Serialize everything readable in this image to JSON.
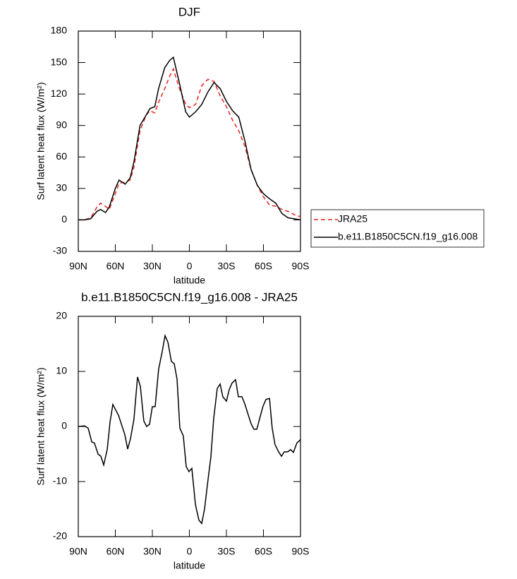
{
  "chart_data": [
    {
      "type": "line",
      "title": "DJF",
      "xlabel": "latitude",
      "ylabel": "Surf latent heat flux (W/m²)",
      "x": [
        90,
        85,
        80,
        75,
        72,
        68,
        65,
        60,
        57,
        52,
        48,
        45,
        40,
        35,
        32,
        28,
        25,
        20,
        16,
        13,
        8,
        3,
        0,
        -5,
        -10,
        -15,
        -20,
        -25,
        -30,
        -35,
        -40,
        -45,
        -50,
        -55,
        -60,
        -65,
        -70,
        -75,
        -80,
        -85,
        -90
      ],
      "series": [
        {
          "name": "JRA25",
          "color": "#e8231f",
          "linestyle": "dashed",
          "values": [
            0,
            0,
            2,
            12,
            16,
            13,
            10,
            25,
            35,
            36,
            38,
            50,
            85,
            100,
            104,
            102,
            112,
            125,
            137,
            144,
            125,
            110,
            107,
            110,
            128,
            134,
            132,
            118,
            108,
            95,
            85,
            70,
            48,
            33,
            22,
            14,
            13,
            10,
            8,
            5,
            3
          ]
        },
        {
          "name": "b.e11.B1850C5CN.f19_g16.008",
          "color": "#000000",
          "linestyle": "solid",
          "values": [
            0,
            0,
            1,
            8,
            10,
            7,
            12,
            30,
            38,
            34,
            40,
            55,
            90,
            100,
            106,
            108,
            125,
            145,
            152,
            155,
            130,
            103,
            98,
            103,
            110,
            122,
            131,
            125,
            113,
            104,
            98,
            75,
            48,
            33,
            25,
            20,
            16,
            6,
            2,
            1,
            0
          ]
        }
      ],
      "xlim": [
        90,
        -90
      ],
      "xticks": [
        {
          "value": 90,
          "label": "90N"
        },
        {
          "value": 60,
          "label": "60N"
        },
        {
          "value": 30,
          "label": "30N"
        },
        0,
        {
          "value": -30,
          "label": "30S"
        },
        {
          "value": -60,
          "label": "60S"
        },
        {
          "value": -90,
          "label": "90S"
        }
      ],
      "ylim": [
        -30,
        180
      ],
      "yticks": [
        -30,
        0,
        30,
        60,
        90,
        120,
        150,
        180
      ],
      "legend": "outside right"
    },
    {
      "type": "line",
      "title": "b.e11.B1850C5CN.f19_g16.008 - JRA25",
      "xlabel": "latitude",
      "ylabel": "Surf latent heat flux (W/m²)",
      "x": [
        90,
        84.9,
        82,
        79.1,
        76.9,
        74,
        71.7,
        69.4,
        66.6,
        64.3,
        62,
        57.4,
        52.3,
        50,
        47.7,
        44.9,
        42,
        39.7,
        36.9,
        34.6,
        32.3,
        30,
        27.7,
        24.9,
        22,
        19.7,
        17.4,
        14.6,
        12.3,
        10,
        7.7,
        4.9,
        2.6,
        0.3,
        -2,
        -4.9,
        -7.7,
        -10,
        -12.3,
        -15.1,
        -17.4,
        -19.7,
        -22.6,
        -24.9,
        -27.1,
        -30,
        -32.3,
        -34.6,
        -37.4,
        -39.7,
        -42.6,
        -44.9,
        -47.7,
        -50,
        -52.3,
        -54.6,
        -57.4,
        -59.7,
        -62,
        -64.9,
        -67.1,
        -69.4,
        -72.3,
        -74.6,
        -76.9,
        -79.7,
        -82,
        -84.3,
        -87.1,
        -90
      ],
      "values": [
        0,
        0.1,
        -0.3,
        -2.8,
        -3,
        -5,
        -5.4,
        -7,
        -4.2,
        0.8,
        4,
        2,
        -1.5,
        -4.1,
        -2.2,
        1.3,
        9,
        7.3,
        1,
        0,
        0.4,
        3.6,
        3.6,
        10.4,
        13.6,
        16.5,
        15.3,
        11.8,
        11.4,
        8.6,
        -0.3,
        -1.7,
        -7.3,
        -8.2,
        -7.6,
        -14.2,
        -17,
        -17.6,
        -15,
        -9.7,
        -5.5,
        1.5,
        6.9,
        7.7,
        5.4,
        4.6,
        6.7,
        7.9,
        8.5,
        5.4,
        5.4,
        4.1,
        2.1,
        0.5,
        -0.5,
        -0.5,
        1.8,
        3.7,
        4.9,
        5.1,
        -0.3,
        -3.3,
        -4.6,
        -5.4,
        -4.6,
        -4.6,
        -4.2,
        -4.7,
        -3,
        -2.4
      ],
      "color": "#000000",
      "linestyle": "solid",
      "xlim": [
        90,
        -90
      ],
      "xticks": [
        {
          "value": 90,
          "label": "90N"
        },
        {
          "value": 60,
          "label": "60N"
        },
        {
          "value": 30,
          "label": "30N"
        },
        0,
        {
          "value": -30,
          "label": "30S"
        },
        {
          "value": -60,
          "label": "60S"
        },
        {
          "value": -90,
          "label": "90S"
        }
      ],
      "ylim": [
        -20,
        20
      ],
      "yticks": [
        -20,
        -10,
        0,
        10,
        20
      ]
    }
  ]
}
